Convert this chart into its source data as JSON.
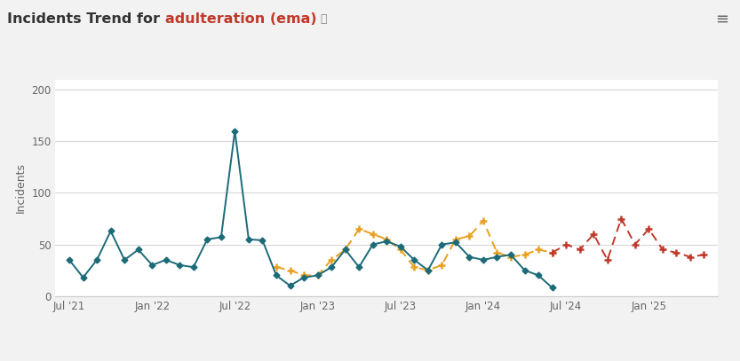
{
  "title_prefix": "Incidents Trend for ",
  "title_highlight": "adulteration (ema)",
  "title_prefix_color": "#333333",
  "title_highlight_color": "#c0392b",
  "ylabel": "Incidents",
  "ylim": [
    0,
    210
  ],
  "yticks": [
    0,
    50,
    100,
    150,
    200
  ],
  "background_color": "#f2f2f2",
  "plot_background_color": "#ffffff",
  "actual_color": "#1c6b78",
  "hist_pred_color": "#e8a020",
  "pred_color": "#c0392b",
  "trend_color": "#bbbbbb",
  "actual_values": {
    "x": [
      0,
      1,
      2,
      3,
      4,
      5,
      6,
      7,
      8,
      9,
      10,
      11,
      12,
      13,
      14,
      15,
      16,
      17,
      18,
      19,
      20,
      21,
      22,
      23,
      24,
      25,
      26,
      27,
      28,
      29,
      30,
      31,
      32,
      33,
      34,
      35
    ],
    "y": [
      35,
      18,
      35,
      63,
      35,
      45,
      30,
      35,
      30,
      28,
      55,
      57,
      160,
      55,
      54,
      20,
      10,
      18,
      20,
      28,
      45,
      28,
      50,
      53,
      48,
      35,
      25,
      50,
      52,
      38,
      35,
      38,
      40,
      25,
      20,
      8
    ]
  },
  "hist_pred_values": {
    "x": [
      15,
      16,
      17,
      18,
      19,
      20,
      21,
      22,
      23,
      24,
      25,
      26,
      27,
      28,
      29,
      30,
      31,
      32,
      33,
      34,
      35
    ],
    "y": [
      28,
      25,
      20,
      20,
      35,
      45,
      65,
      60,
      55,
      45,
      28,
      25,
      30,
      55,
      58,
      73,
      42,
      38,
      40,
      45,
      42
    ]
  },
  "pred_values": {
    "x": [
      35,
      36,
      37,
      38,
      39,
      40,
      41,
      42,
      43,
      44,
      45,
      46
    ],
    "y": [
      42,
      50,
      45,
      60,
      35,
      75,
      50,
      65,
      45,
      42,
      38,
      40
    ]
  },
  "xtick_positions": [
    0,
    6,
    12,
    18,
    24,
    30,
    36,
    42
  ],
  "xtick_labels": [
    "Jul '21",
    "Jan '22",
    "Jul '22",
    "Jan '23",
    "Jul '23",
    "Jan '24",
    "Jul '24",
    "Jan '25"
  ]
}
